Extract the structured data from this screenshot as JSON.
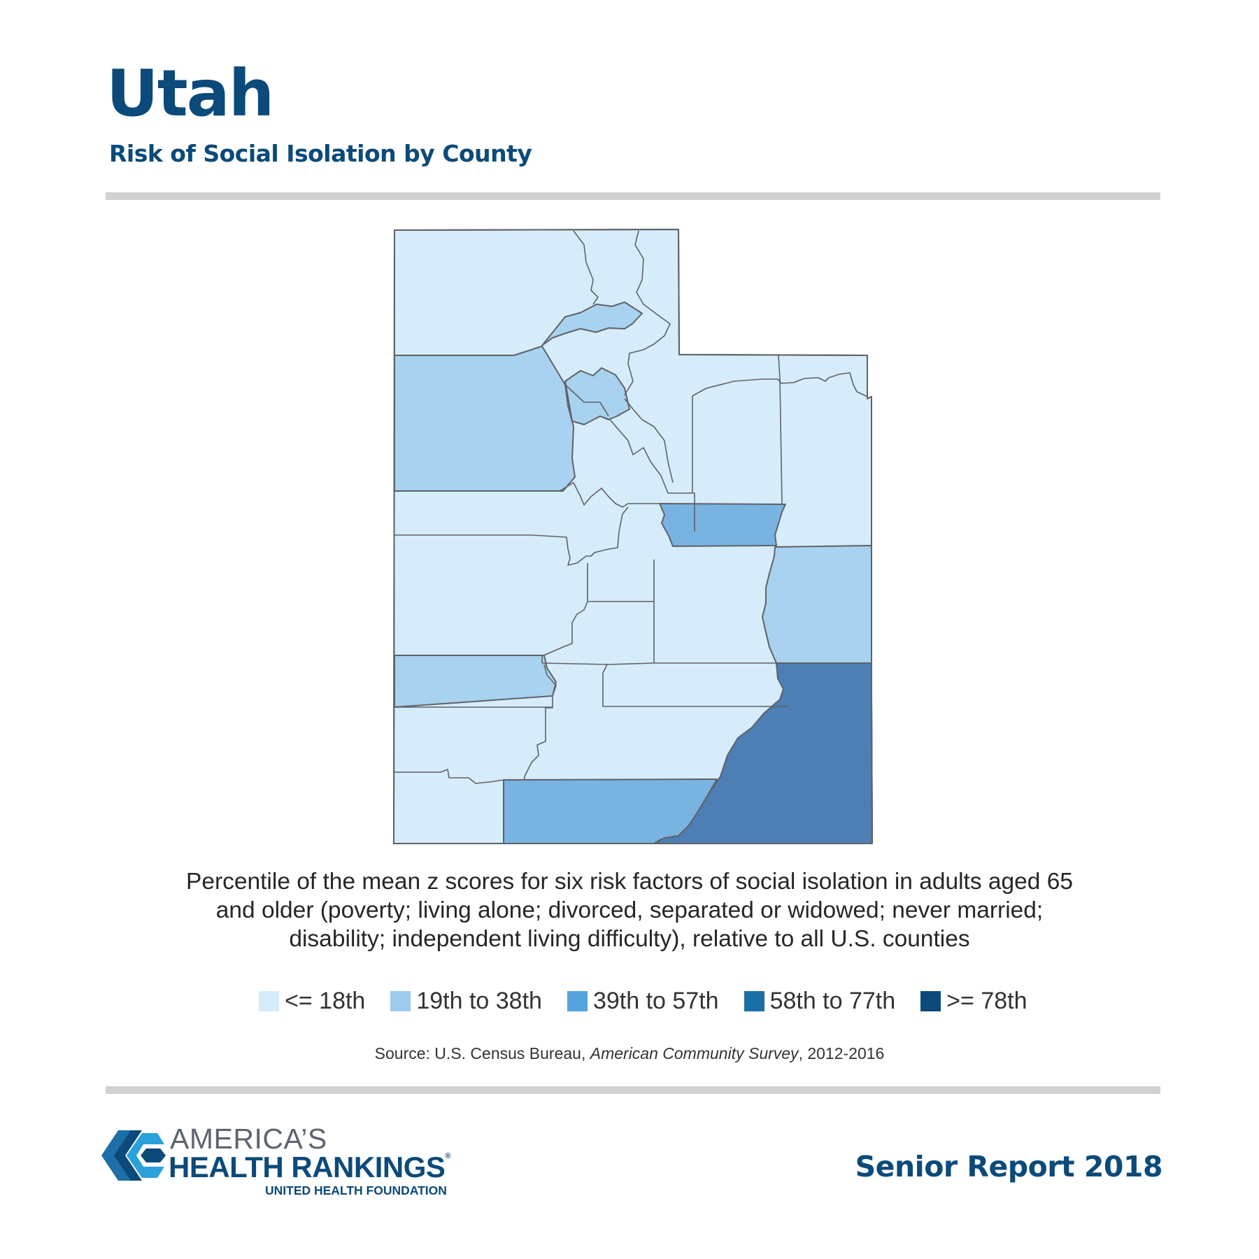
{
  "header": {
    "title": "Utah",
    "subtitle": "Risk of Social Isolation by County"
  },
  "map": {
    "state": "Utah",
    "colors": {
      "le_18th": "#d6ecfa",
      "19th_to_38th": "#a8d2f0",
      "39th_to_57th": "#78b3e2",
      "58th_to_77th": "#4d7fb5",
      "ge_78th": "#0b4a7a"
    }
  },
  "description": "Percentile of the mean z scores for six risk factors of social isolation in adults aged 65 and older (poverty; living alone; divorced, separated or widowed; never married; disability; independent living difficulty), relative to all U.S. counties",
  "legend": {
    "items": [
      {
        "label": "<= 18th",
        "color": "#d6ecfa"
      },
      {
        "label": "19th to 38th",
        "color": "#9ccbed"
      },
      {
        "label": "39th to 57th",
        "color": "#55a3dc"
      },
      {
        "label": "58th to 77th",
        "color": "#1b6fa8"
      },
      {
        "label": ">= 78th",
        "color": "#0b4a7a"
      }
    ]
  },
  "source": {
    "prefix": "Source: U.S. Census Bureau, ",
    "publication": "American Community Survey",
    "suffix": ", 2012-2016"
  },
  "footer": {
    "logo_line1": "AMERICA’S",
    "logo_line2": "HEALTH RANKINGS",
    "logo_registered": "®",
    "logo_line3": "UNITED HEALTH FOUNDATION",
    "report": "Senior Report 2018"
  }
}
